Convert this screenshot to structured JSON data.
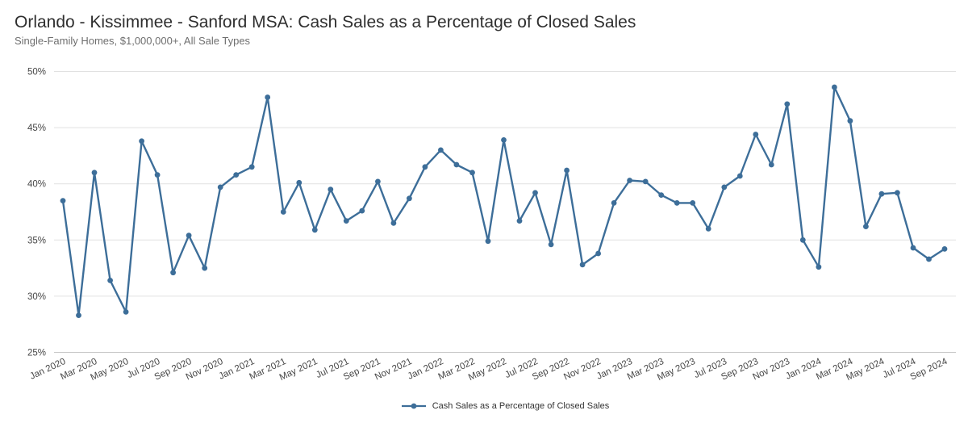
{
  "header": {
    "title": "Orlando - Kissimmee - Sanford MSA: Cash Sales as a Percentage of Closed Sales",
    "subtitle": "Single-Family Homes, $1,000,000+, All Sale Types"
  },
  "legend": {
    "label": "Cash Sales as a Percentage of Closed Sales"
  },
  "colors": {
    "line": "#3d6e99",
    "marker": "#3d6e99",
    "grid": "#e1e1e1",
    "axis": "#c8c8c8",
    "tick_text": "#474747",
    "title_text": "#2f2f2f",
    "subtitle_text": "#6f6f6f",
    "legend_text": "#333333"
  },
  "chart_data": {
    "type": "line",
    "title": "Orlando - Kissimmee - Sanford MSA: Cash Sales as a Percentage of Closed Sales",
    "subtitle": "Single-Family Homes, $1,000,000+, All Sale Types",
    "xlabel": "",
    "ylabel": "",
    "ylim": [
      25,
      50
    ],
    "yticks": [
      25,
      30,
      35,
      40,
      45,
      50
    ],
    "ytick_suffix": "%",
    "grid": "horizontal",
    "legend_position": "bottom",
    "x_tick_every": 2,
    "x": [
      "Jan 2020",
      "Feb 2020",
      "Mar 2020",
      "Apr 2020",
      "May 2020",
      "Jun 2020",
      "Jul 2020",
      "Aug 2020",
      "Sep 2020",
      "Oct 2020",
      "Nov 2020",
      "Dec 2020",
      "Jan 2021",
      "Feb 2021",
      "Mar 2021",
      "Apr 2021",
      "May 2021",
      "Jun 2021",
      "Jul 2021",
      "Aug 2021",
      "Sep 2021",
      "Oct 2021",
      "Nov 2021",
      "Dec 2021",
      "Jan 2022",
      "Feb 2022",
      "Mar 2022",
      "Apr 2022",
      "May 2022",
      "Jun 2022",
      "Jul 2022",
      "Aug 2022",
      "Sep 2022",
      "Oct 2022",
      "Nov 2022",
      "Dec 2022",
      "Jan 2023",
      "Feb 2023",
      "Mar 2023",
      "Apr 2023",
      "May 2023",
      "Jun 2023",
      "Jul 2023",
      "Aug 2023",
      "Sep 2023",
      "Oct 2023",
      "Nov 2023",
      "Dec 2023",
      "Jan 2024",
      "Feb 2024",
      "Mar 2024",
      "Apr 2024",
      "May 2024",
      "Jun 2024",
      "Jul 2024",
      "Aug 2024",
      "Sep 2024"
    ],
    "series": [
      {
        "name": "Cash Sales as a Percentage of Closed Sales",
        "values": [
          38.5,
          28.3,
          41.0,
          31.4,
          28.6,
          43.8,
          40.8,
          32.1,
          35.4,
          32.5,
          39.7,
          40.8,
          41.5,
          47.7,
          37.5,
          40.1,
          35.9,
          39.5,
          36.7,
          37.6,
          40.2,
          36.5,
          38.7,
          41.5,
          43.0,
          41.7,
          41.0,
          34.9,
          43.9,
          36.7,
          39.2,
          34.6,
          41.2,
          32.8,
          33.8,
          38.3,
          40.3,
          40.2,
          39.0,
          38.3,
          38.3,
          36.0,
          39.7,
          40.7,
          44.4,
          41.7,
          47.1,
          35.0,
          32.6,
          48.6,
          45.6,
          36.2,
          39.1,
          39.2,
          34.3,
          33.3,
          34.2
        ]
      }
    ]
  }
}
